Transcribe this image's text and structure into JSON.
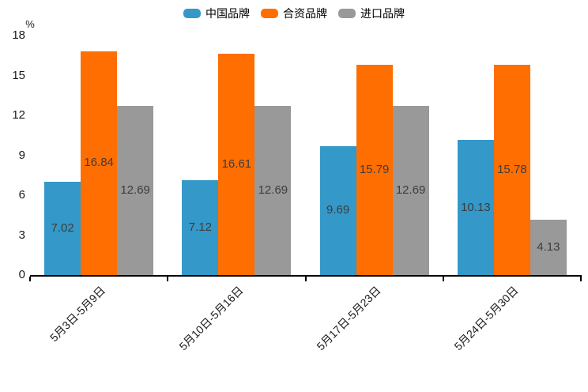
{
  "chart_data": {
    "type": "bar",
    "title": "",
    "xlabel": "",
    "ylabel": "%",
    "unit_label": "%",
    "categories": [
      "5月3日-5月9日",
      "5月10日-5月16日",
      "5月17日-5月23日",
      "5月24日-5月30日"
    ],
    "series": [
      {
        "name": "中国品牌",
        "slug": "china-brand",
        "color": "#3498c8",
        "values": [
          7.02,
          7.12,
          9.69,
          10.13
        ]
      },
      {
        "name": "合资品牌",
        "slug": "joint-venture-brand",
        "color": "#ff6e00",
        "values": [
          16.84,
          16.61,
          15.79,
          15.78
        ]
      },
      {
        "name": "进口品牌",
        "slug": "import-brand",
        "color": "#999999",
        "values": [
          12.69,
          12.69,
          12.69,
          4.13
        ]
      }
    ],
    "ylim": [
      0,
      18
    ],
    "yticks": [
      0,
      3,
      6,
      9,
      12,
      15,
      18
    ],
    "grid": false,
    "legend_position": "top-center",
    "value_label_position": "inside-center",
    "value_label_decimals": 2
  },
  "styles": {
    "background": "#ffffff",
    "axis_color": "#000000",
    "tick_label_color": "#1a1a1a",
    "value_label_color": "#3d3d3d"
  }
}
